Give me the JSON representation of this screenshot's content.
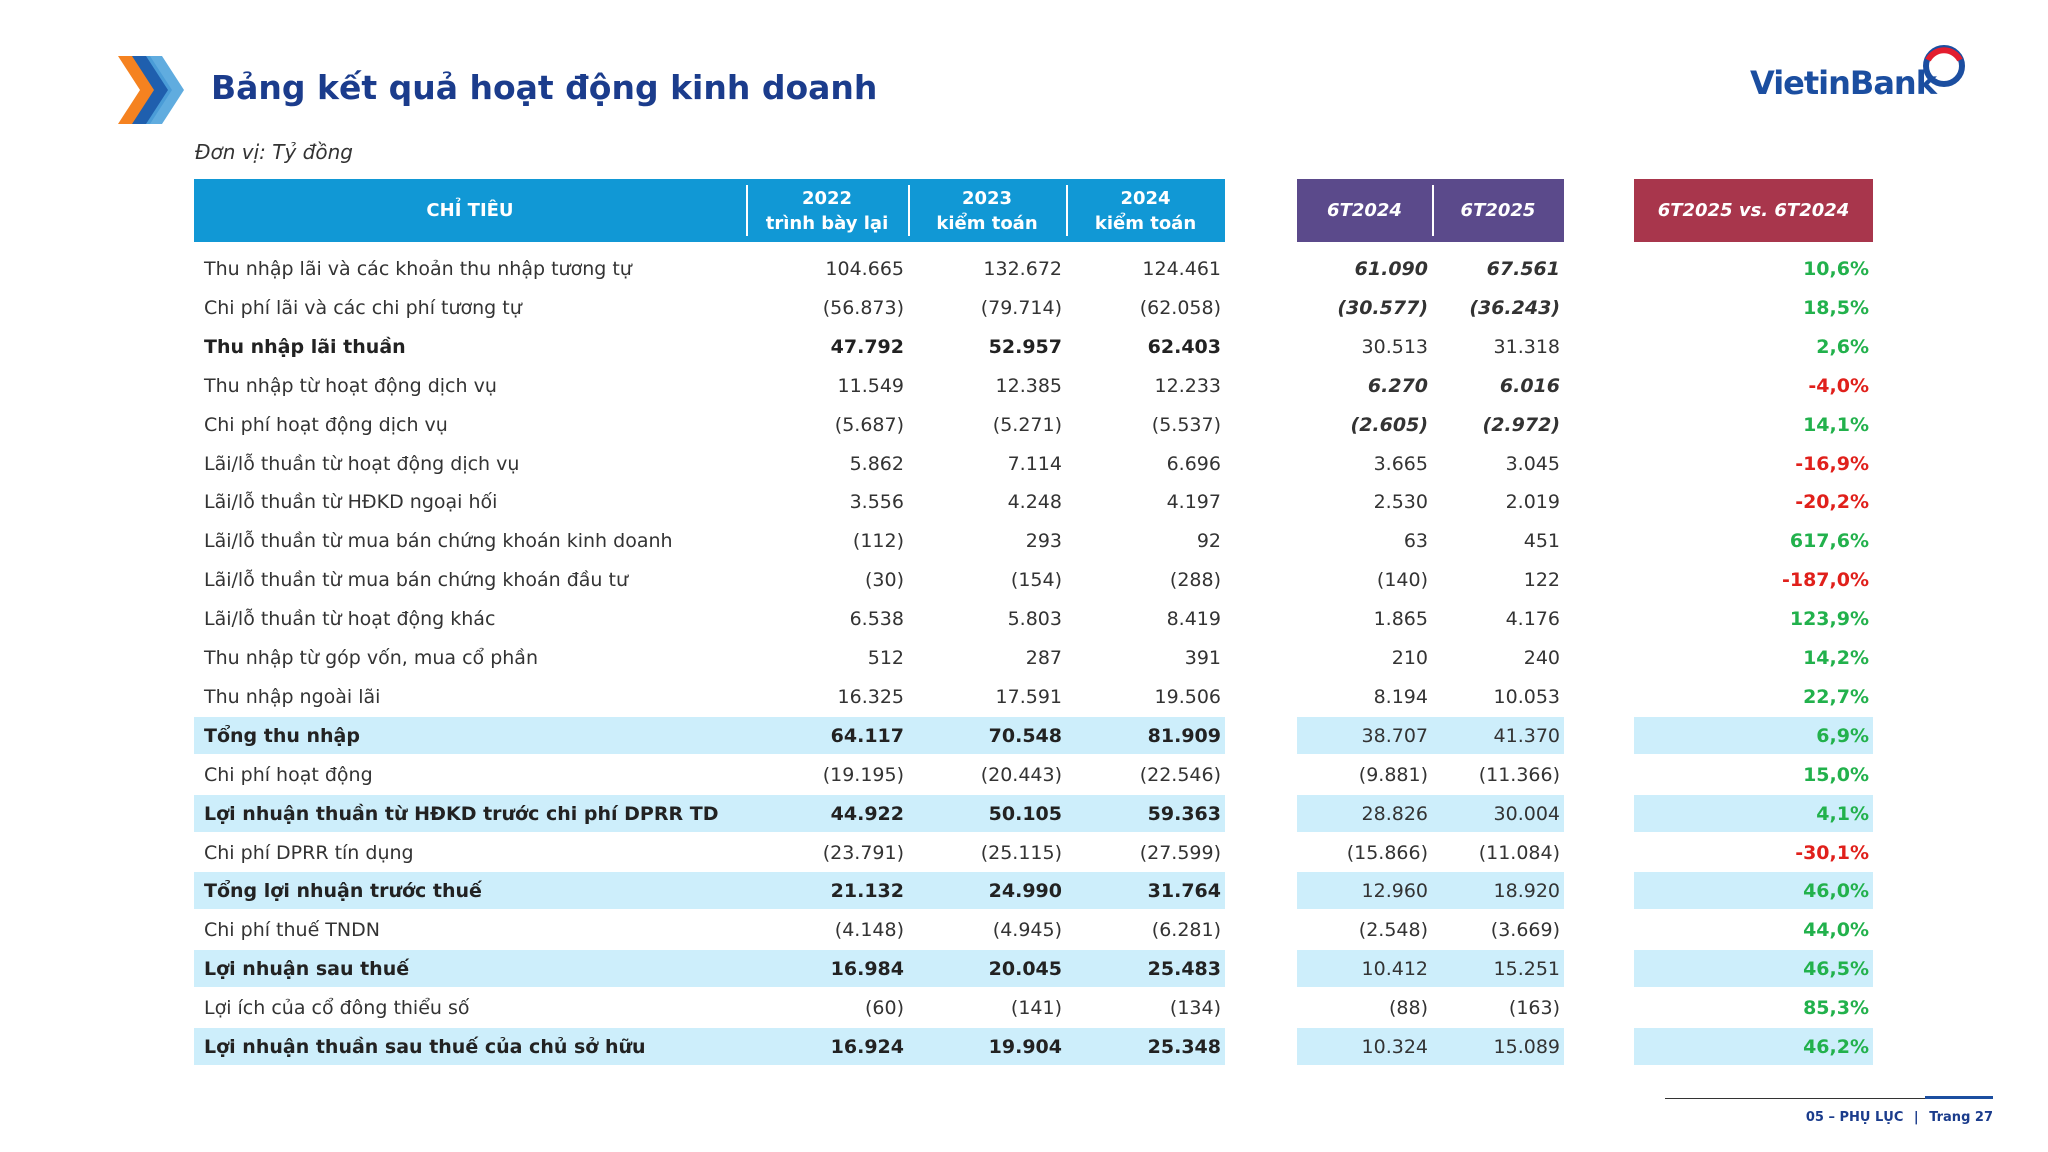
{
  "header": {
    "title": "Bảng kết quả hoạt động kinh doanh",
    "logo": "VietinBank",
    "unit": "Đơn vị: Tỷ đồng"
  },
  "table": {
    "columns": [
      {
        "year": "CHỈ TIÊU"
      },
      {
        "year": "2022",
        "note": "trình bày lại"
      },
      {
        "year": "2023",
        "note": "kiểm toán"
      },
      {
        "year": "2024",
        "note": "kiểm toán"
      },
      {
        "year": "6T2024"
      },
      {
        "year": "6T2025"
      },
      {
        "year": "6T2025 vs. 6T2024"
      }
    ],
    "rows": [
      [
        "Thu nhập lãi và các khoản thu nhập tương tự",
        "104.665",
        "132.672",
        "124.461",
        "61.090",
        "67.561",
        "10,6%"
      ],
      [
        "Chi phí lãi và các chi phí tương tự",
        "(56.873)",
        "(79.714)",
        "(62.058)",
        "(30.577)",
        "(36.243)",
        "18,5%"
      ],
      [
        "Thu nhập lãi thuần",
        "47.792",
        "52.957",
        "62.403",
        "30.513",
        "31.318",
        "2,6%"
      ],
      [
        "Thu nhập từ hoạt động dịch vụ",
        "11.549",
        "12.385",
        "12.233",
        "6.270",
        "6.016",
        "-4,0%"
      ],
      [
        "Chi phí hoạt động dịch vụ",
        "(5.687)",
        "(5.271)",
        "(5.537)",
        "(2.605)",
        "(2.972)",
        "14,1%"
      ],
      [
        "Lãi/lỗ thuần từ hoạt động dịch vụ",
        "5.862",
        "7.114",
        "6.696",
        "3.665",
        "3.045",
        "-16,9%"
      ],
      [
        "Lãi/lỗ thuần từ HĐKD ngoại hối",
        "3.556",
        "4.248",
        "4.197",
        "2.530",
        "2.019",
        "-20,2%"
      ],
      [
        "Lãi/lỗ thuần từ mua bán chứng khoán kinh doanh",
        "(112)",
        "293",
        "92",
        "63",
        "451",
        "617,6%"
      ],
      [
        "Lãi/lỗ thuần từ mua bán chứng khoán đầu tư",
        "(30)",
        "(154)",
        "(288)",
        "(140)",
        "122",
        "-187,0%"
      ],
      [
        "Lãi/lỗ thuần từ hoạt động khác",
        "6.538",
        "5.803",
        "8.419",
        "1.865",
        "4.176",
        "123,9%"
      ],
      [
        "Thu nhập từ góp vốn, mua cổ phần",
        "512",
        "287",
        "391",
        "210",
        "240",
        "14,2%"
      ],
      [
        "Thu nhập ngoài lãi",
        "16.325",
        "17.591",
        "19.506",
        "8.194",
        "10.053",
        "22,7%"
      ],
      [
        "Tổng thu nhập",
        "64.117",
        "70.548",
        "81.909",
        "38.707",
        "41.370",
        "6,9%"
      ],
      [
        "Chi phí hoạt động",
        "(19.195)",
        "(20.443)",
        "(22.546)",
        "(9.881)",
        "(11.366)",
        "15,0%"
      ],
      [
        "Lợi nhuận thuần từ HĐKD trước chi phí DPRR TD",
        "44.922",
        "50.105",
        "59.363",
        "28.826",
        "30.004",
        "4,1%"
      ],
      [
        "Chi phí DPRR tín dụng",
        "(23.791)",
        "(25.115)",
        "(27.599)",
        "(15.866)",
        "(11.084)",
        "-30,1%"
      ],
      [
        "Tổng lợi nhuận trước thuế",
        "21.132",
        "24.990",
        "31.764",
        "12.960",
        "18.920",
        "46,0%"
      ],
      [
        "Chi phí thuế TNDN",
        "(4.148)",
        "(4.945)",
        "(6.281)",
        "(2.548)",
        "(3.669)",
        "44,0%"
      ],
      [
        "Lợi nhuận sau thuế",
        "16.984",
        "20.045",
        "25.483",
        "10.412",
        "15.251",
        "46,5%"
      ],
      [
        "Lợi ích của cổ đông thiểu số",
        "(60)",
        "(141)",
        "(134)",
        "(88)",
        "(163)",
        "85,3%"
      ],
      [
        "Lợi nhuận thuần sau thuế của chủ sở hữu",
        "16.924",
        "19.904",
        "25.348",
        "10.324",
        "15.089",
        "46,2%"
      ]
    ]
  },
  "footer": {
    "section": "05 – PHỤ LỤC",
    "page": "Trang 27"
  }
}
